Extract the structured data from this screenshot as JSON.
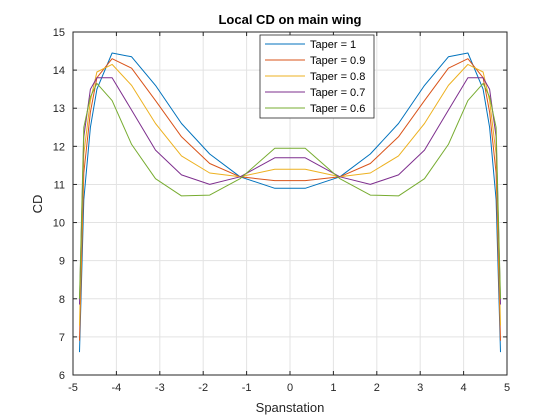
{
  "chart_data": {
    "type": "line",
    "title": "Local CD on main wing",
    "xlabel": "Spanstation",
    "ylabel": "CD",
    "xlim": [
      -5,
      5
    ],
    "ylim": [
      6,
      15
    ],
    "xticks": [
      -5,
      -4,
      -3,
      -2,
      -1,
      0,
      1,
      2,
      3,
      4,
      5
    ],
    "yticks": [
      6,
      7,
      8,
      9,
      10,
      11,
      12,
      13,
      14,
      15
    ],
    "xtick_labels": [
      "-5",
      "-4",
      "-3",
      "-2",
      "-1",
      "0",
      "1",
      "2",
      "3",
      "4",
      "5"
    ],
    "ytick_labels": [
      "6",
      "7",
      "8",
      "9",
      "10",
      "11",
      "12",
      "13",
      "14",
      "15"
    ],
    "grid": true,
    "legend_position": "top-center",
    "series": [
      {
        "name": "Taper = 1",
        "color": "#0072BD",
        "x": [
          -4.85,
          -4.75,
          -4.6,
          -4.45,
          -4.1,
          -3.65,
          -3.1,
          -2.5,
          -1.85,
          -1.15,
          -0.35,
          0.35,
          1.15,
          1.85,
          2.5,
          3.1,
          3.65,
          4.1,
          4.45,
          4.6,
          4.75,
          4.85
        ],
        "y": [
          6.6,
          10.6,
          12.5,
          13.5,
          14.45,
          14.35,
          13.6,
          12.6,
          11.8,
          11.2,
          10.9,
          10.9,
          11.2,
          11.8,
          12.6,
          13.6,
          14.35,
          14.45,
          13.5,
          12.5,
          10.6,
          6.6
        ]
      },
      {
        "name": "Taper = 0.9",
        "color": "#D95319",
        "x": [
          -4.85,
          -4.75,
          -4.6,
          -4.45,
          -4.1,
          -3.65,
          -3.1,
          -2.5,
          -1.85,
          -1.15,
          -0.35,
          0.35,
          1.15,
          1.85,
          2.5,
          3.1,
          3.65,
          4.1,
          4.45,
          4.6,
          4.75,
          4.85
        ],
        "y": [
          6.9,
          11.3,
          12.9,
          13.8,
          14.3,
          14.05,
          13.2,
          12.25,
          11.55,
          11.2,
          11.1,
          11.1,
          11.2,
          11.55,
          12.25,
          13.2,
          14.05,
          14.3,
          13.8,
          12.9,
          11.3,
          6.9
        ]
      },
      {
        "name": "Taper = 0.8",
        "color": "#EDB120",
        "x": [
          -4.85,
          -4.75,
          -4.6,
          -4.45,
          -4.1,
          -3.65,
          -3.1,
          -2.5,
          -1.85,
          -1.15,
          -0.35,
          0.35,
          1.15,
          1.85,
          2.5,
          3.1,
          3.65,
          4.1,
          4.45,
          4.6,
          4.75,
          4.85
        ],
        "y": [
          7.3,
          11.8,
          13.2,
          13.95,
          14.15,
          13.6,
          12.6,
          11.75,
          11.3,
          11.2,
          11.4,
          11.4,
          11.2,
          11.3,
          11.75,
          12.6,
          13.6,
          14.15,
          13.95,
          13.2,
          11.8,
          7.3
        ]
      },
      {
        "name": "Taper = 0.7",
        "color": "#7E2F8E",
        "x": [
          -4.85,
          -4.75,
          -4.6,
          -4.45,
          -4.1,
          -3.65,
          -3.1,
          -2.5,
          -1.85,
          -1.15,
          -0.35,
          0.35,
          1.15,
          1.85,
          2.5,
          3.1,
          3.65,
          4.1,
          4.45,
          4.6,
          4.75,
          4.85
        ],
        "y": [
          7.85,
          12.25,
          13.5,
          13.8,
          13.8,
          12.95,
          11.9,
          11.25,
          11.0,
          11.2,
          11.7,
          11.7,
          11.2,
          11.0,
          11.25,
          11.9,
          12.95,
          13.8,
          13.8,
          13.5,
          12.25,
          7.85
        ]
      },
      {
        "name": "Taper = 0.6",
        "color": "#77AC30",
        "x": [
          -4.85,
          -4.75,
          -4.6,
          -4.45,
          -4.1,
          -3.65,
          -3.1,
          -2.5,
          -1.85,
          -1.15,
          -0.35,
          0.35,
          1.15,
          1.85,
          2.5,
          3.1,
          3.65,
          4.1,
          4.45,
          4.6,
          4.75,
          4.85
        ],
        "y": [
          8.0,
          12.5,
          13.3,
          13.65,
          13.2,
          12.05,
          11.15,
          10.7,
          10.72,
          11.15,
          11.95,
          11.95,
          11.15,
          10.72,
          10.7,
          11.15,
          12.05,
          13.2,
          13.65,
          13.3,
          12.5,
          8.0
        ]
      }
    ]
  }
}
